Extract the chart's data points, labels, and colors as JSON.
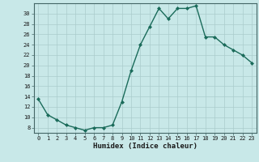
{
  "x": [
    0,
    1,
    2,
    3,
    4,
    5,
    6,
    7,
    8,
    9,
    10,
    11,
    12,
    13,
    14,
    15,
    16,
    17,
    18,
    19,
    20,
    21,
    22,
    23
  ],
  "y": [
    13.5,
    10.5,
    9.5,
    8.5,
    8.0,
    7.5,
    8.0,
    8.0,
    8.5,
    13.0,
    19.0,
    24.0,
    27.5,
    31.0,
    29.0,
    31.0,
    31.0,
    31.5,
    25.5,
    25.5,
    24.0,
    23.0,
    22.0,
    20.5
  ],
  "line_color": "#1a6b5a",
  "marker": "D",
  "markersize": 2.0,
  "linewidth": 1.0,
  "xlabel": "Humidex (Indice chaleur)",
  "xlim": [
    -0.5,
    23.5
  ],
  "ylim": [
    7,
    32
  ],
  "yticks": [
    8,
    10,
    12,
    14,
    16,
    18,
    20,
    22,
    24,
    26,
    28,
    30
  ],
  "xticks": [
    0,
    1,
    2,
    3,
    4,
    5,
    6,
    7,
    8,
    9,
    10,
    11,
    12,
    13,
    14,
    15,
    16,
    17,
    18,
    19,
    20,
    21,
    22,
    23
  ],
  "xtick_labels": [
    "0",
    "1",
    "2",
    "3",
    "4",
    "5",
    "6",
    "7",
    "8",
    "9",
    "10",
    "11",
    "12",
    "13",
    "14",
    "15",
    "16",
    "17",
    "18",
    "19",
    "20",
    "21",
    "22",
    "23"
  ],
  "background_color": "#c8e8e8",
  "grid_color": "#aacccc",
  "tick_fontsize": 5.0,
  "xlabel_fontsize": 6.5,
  "tick_color": "#1a1a1a",
  "spine_color": "#446666"
}
